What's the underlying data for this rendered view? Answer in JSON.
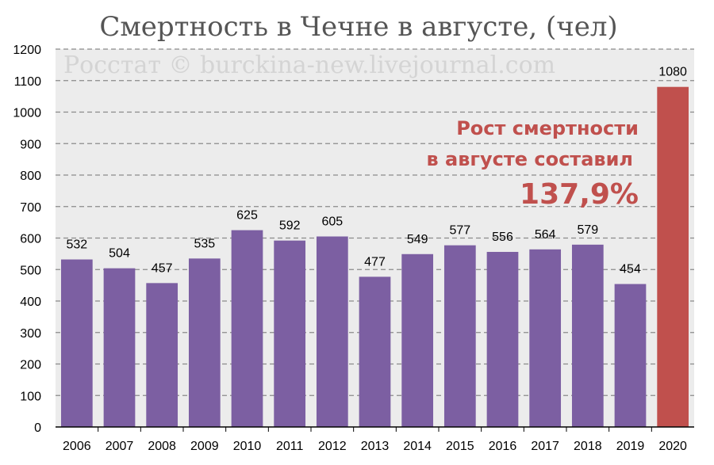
{
  "chart_data": {
    "type": "bar",
    "title": "Смертность в Чечне в августе, (чел)",
    "watermark": "Росстат © burckina-new.livejournal.com",
    "xlabel": "",
    "ylabel": "",
    "ylim": [
      0,
      1200
    ],
    "yticks": [
      0,
      100,
      200,
      300,
      400,
      500,
      600,
      700,
      800,
      900,
      1000,
      1100,
      1200
    ],
    "grid": true,
    "categories": [
      "2006",
      "2007",
      "2008",
      "2009",
      "2010",
      "2011",
      "2012",
      "2013",
      "2014",
      "2015",
      "2016",
      "2017",
      "2018",
      "2019",
      "2020"
    ],
    "values": [
      532,
      504,
      457,
      535,
      625,
      592,
      605,
      477,
      549,
      577,
      556,
      564,
      579,
      454,
      1080
    ],
    "data_labels": [
      "532",
      "504",
      "457",
      "535",
      "625",
      "592",
      "605",
      "477",
      "549",
      "577",
      "556",
      "564",
      "579",
      "454",
      "1080"
    ],
    "colors": {
      "bar": "#7c5fa2",
      "highlight_bar": "#c0504d",
      "plot_background": "#ececec",
      "grid": "#8a8a8a",
      "title": "#555555",
      "watermark": "#d4d4d4",
      "annotation": "#c0504d"
    },
    "highlight_category": "2020",
    "annotation": {
      "line1": "Рост смертности",
      "line2": "в августе составил",
      "line3": "137,9%"
    }
  }
}
